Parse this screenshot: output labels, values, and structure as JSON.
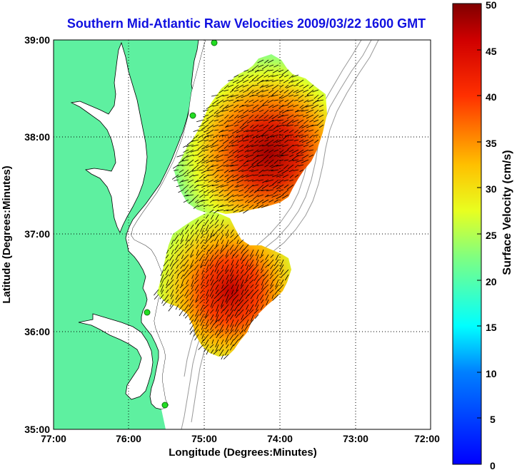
{
  "title": "Southern Mid-Atlantic Raw Velocities 2009/03/22 1600 GMT",
  "x_axis": {
    "label": "Longitude (Degrees:Minutes)",
    "ticks": [
      "77:00",
      "76:00",
      "75:00",
      "74:00",
      "73:00",
      "72:00"
    ]
  },
  "y_axis": {
    "label": "Latitude (Degrees:Minutes)",
    "ticks": [
      "39:00",
      "38:00",
      "37:00",
      "36:00",
      "35:00"
    ]
  },
  "colorbar": {
    "label": "Surface Velocity (cm/s)",
    "ticks": [
      "50",
      "45",
      "40",
      "35",
      "30",
      "25",
      "20",
      "15",
      "10",
      "5",
      "0"
    ],
    "range": [
      0,
      50
    ]
  },
  "colors": {
    "title": "#1010e0",
    "land": "#5ef0a0",
    "coastline": "#000000",
    "bathymetry": "#999999",
    "station": "#22dd22"
  },
  "extent": {
    "lon_west": "77:00",
    "lon_east": "72:00",
    "lat_south": "35:00",
    "lat_north": "39:00"
  },
  "chart_data": {
    "type": "heatmap",
    "x_range": [
      -77,
      -72
    ],
    "y_range": [
      35,
      39
    ],
    "grid": true,
    "colorbar_range": [
      0,
      50
    ]
  }
}
